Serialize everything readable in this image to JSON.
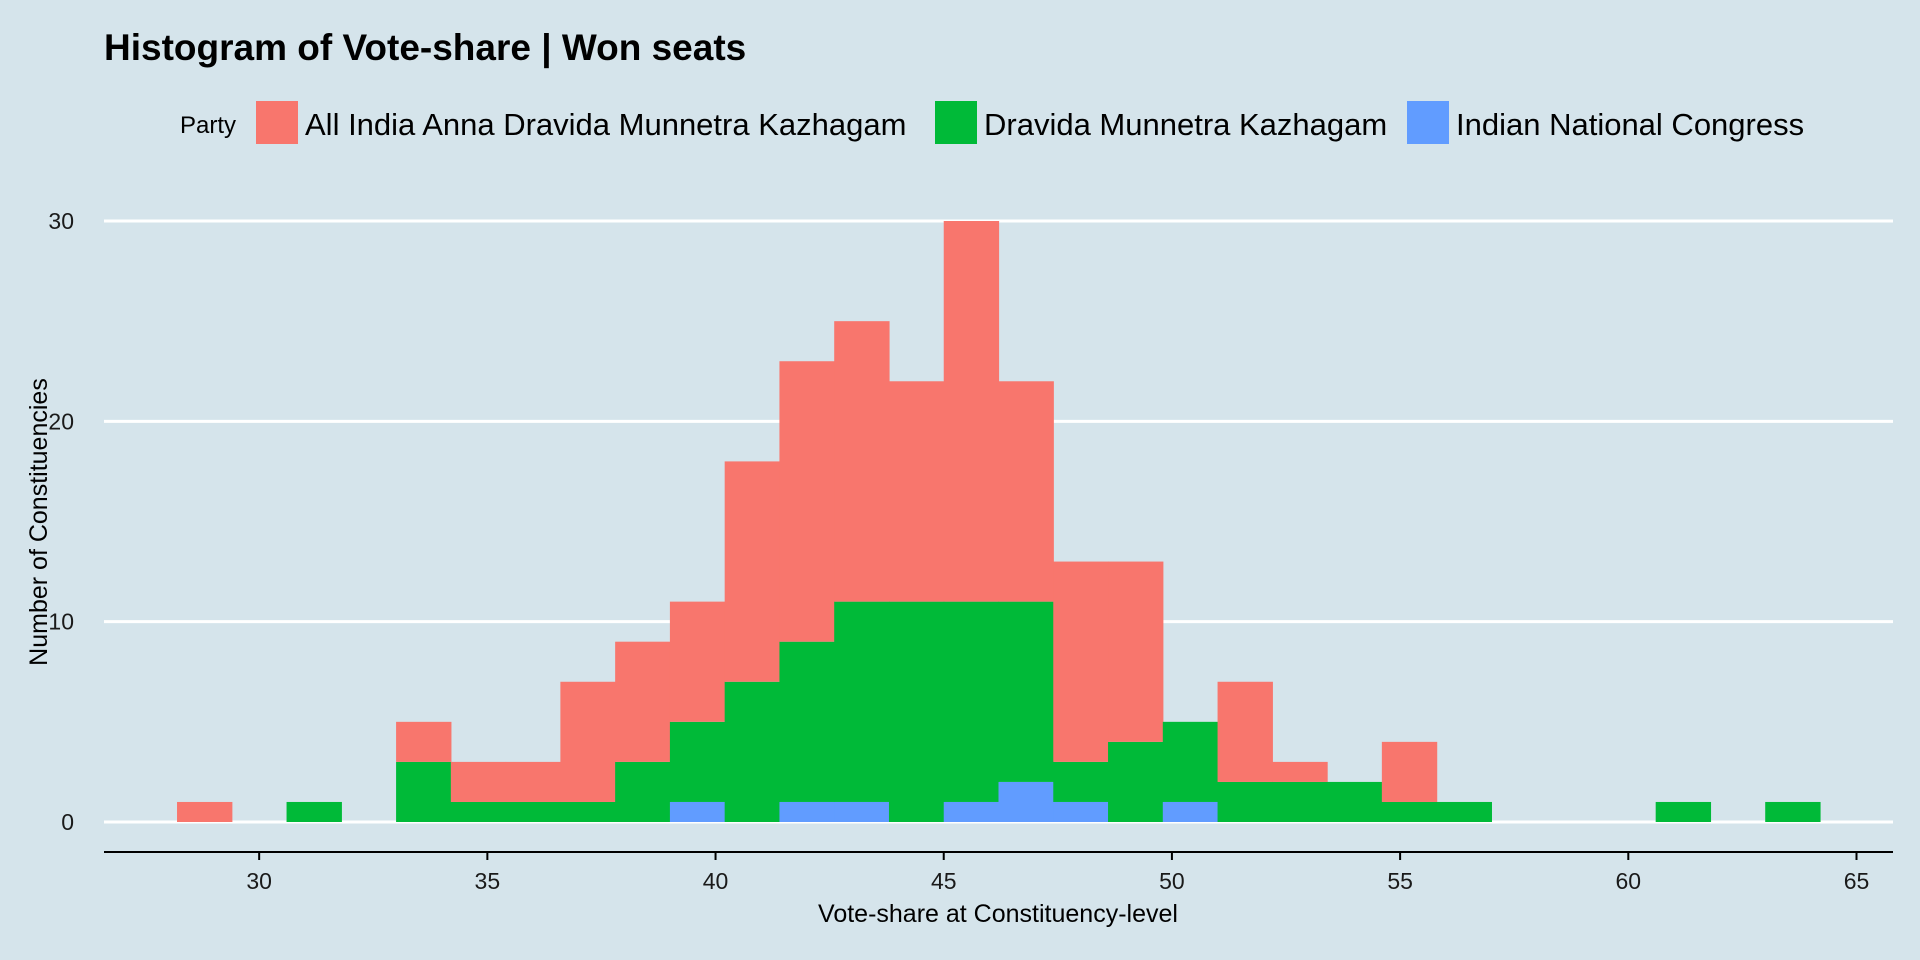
{
  "chart_data": {
    "type": "bar",
    "subtype": "stacked-histogram",
    "title": "Histogram of Vote-share |  Won seats",
    "xlabel": "Vote-share at Constituency-level",
    "ylabel": "Number of Constituencies",
    "legend_title": "Party",
    "legend_position": "top",
    "grid": "horizontal major lines (white)",
    "xlim": [
      26.6,
      65.8
    ],
    "ylim": [
      0,
      30
    ],
    "x_ticks": [
      30,
      35,
      40,
      45,
      50,
      55,
      60,
      65
    ],
    "y_ticks": [
      0,
      10,
      20,
      30
    ],
    "bin_width": 1.2,
    "bin_start": 28.2,
    "bins": [
      28.8,
      30.0,
      31.2,
      32.4,
      33.6,
      34.8,
      36.0,
      37.2,
      38.4,
      39.6,
      40.8,
      42.0,
      43.2,
      44.4,
      45.6,
      46.8,
      48.0,
      49.2,
      50.4,
      51.6,
      52.8,
      54.0,
      55.2,
      56.4,
      57.6,
      58.8,
      60.0,
      61.2,
      62.4,
      63.6
    ],
    "series": [
      {
        "name": "All India Anna Dravida Munnetra Kazhagam",
        "color": "#f8766d",
        "values": [
          1,
          0,
          0,
          0,
          2,
          2,
          2,
          6,
          6,
          6,
          11,
          14,
          14,
          11,
          19,
          11,
          10,
          9,
          0,
          5,
          1,
          0,
          3,
          0,
          0,
          0,
          0,
          0,
          0,
          0
        ]
      },
      {
        "name": "Dravida Munnetra Kazhagam",
        "color": "#00ba38",
        "values": [
          0,
          0,
          1,
          0,
          3,
          1,
          1,
          1,
          3,
          4,
          7,
          8,
          10,
          11,
          10,
          9,
          2,
          4,
          4,
          2,
          2,
          2,
          1,
          1,
          0,
          0,
          0,
          1,
          0,
          1
        ]
      },
      {
        "name": "Indian National Congress",
        "color": "#619cff",
        "values": [
          0,
          0,
          0,
          0,
          0,
          0,
          0,
          0,
          0,
          1,
          0,
          1,
          1,
          0,
          1,
          2,
          1,
          0,
          1,
          0,
          0,
          0,
          0,
          0,
          0,
          0,
          0,
          0,
          0,
          0
        ]
      }
    ]
  }
}
